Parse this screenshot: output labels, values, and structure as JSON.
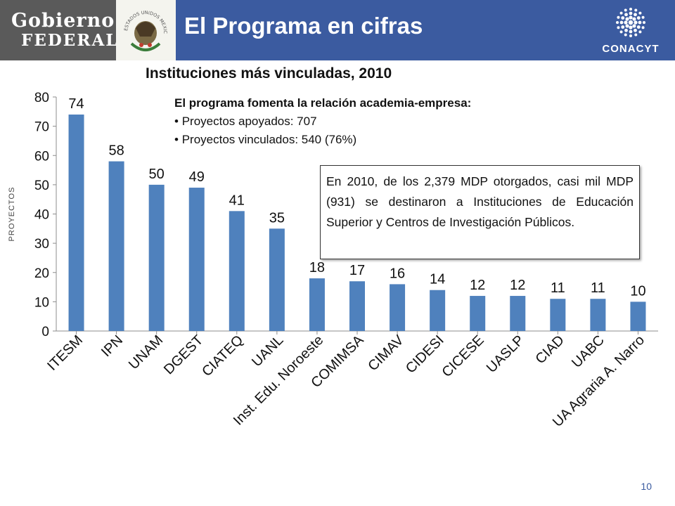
{
  "header": {
    "org_line1": "Gobierno",
    "org_line2": "FEDERAL",
    "seal_text": "ESTADOS UNIDOS MEXICANOS",
    "title": "El Programa en cifras",
    "brand": "CONACYT",
    "colors": {
      "bar": "#3b5ba0",
      "org_box": "#5a5a5a"
    }
  },
  "subtitle": "Instituciones más vinculadas, 2010",
  "intro": {
    "title": "El programa fomenta la relación academia-empresa:",
    "bullets": [
      "Proyectos apoyados: 707",
      "Proyectos vinculados: 540 (76%)"
    ]
  },
  "note": "En 2010, de los 2,379 MDP otorgados, casi mil MDP (931) se destinaron a Instituciones de Educación Superior y Centros de Investigación Públicos.",
  "page_number": "10",
  "chart_data": {
    "type": "bar",
    "ylabel": "PROYECTOS",
    "xlabel": "",
    "ylim": [
      0,
      80
    ],
    "yticks": [
      0,
      10,
      20,
      30,
      40,
      50,
      60,
      70,
      80
    ],
    "categories": [
      "ITESM",
      "IPN",
      "UNAM",
      "DGEST",
      "CIATEQ",
      "UANL",
      "Inst. Edu. Noroeste",
      "COMIMSA",
      "CIMAV",
      "CIDESI",
      "CICESE",
      "UASLP",
      "CIAD",
      "UABC",
      "UA Agraria A. Narro"
    ],
    "values": [
      74,
      58,
      50,
      49,
      41,
      35,
      18,
      17,
      16,
      14,
      12,
      12,
      11,
      11,
      10
    ],
    "bar_color": "#4f81bd",
    "grid": false,
    "legend": "none"
  }
}
